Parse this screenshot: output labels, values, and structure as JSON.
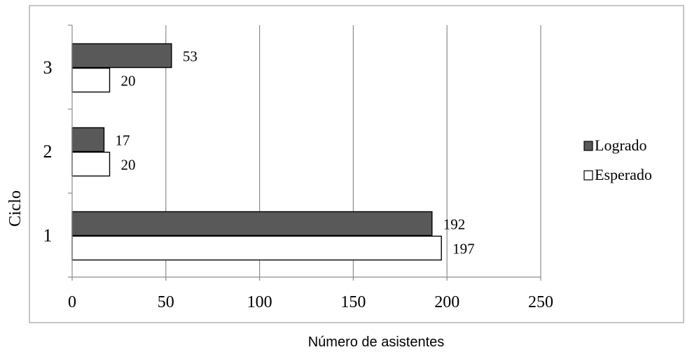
{
  "chart_data": {
    "type": "bar",
    "orientation": "horizontal",
    "categories": [
      "1",
      "2",
      "3"
    ],
    "series": [
      {
        "name": "Logrado",
        "values": [
          192,
          17,
          53
        ],
        "color": "#595959"
      },
      {
        "name": "Esperado",
        "values": [
          197,
          20,
          20
        ],
        "color": "#ffffff"
      }
    ],
    "xlabel": "Número de asistentes",
    "ylabel": "Ciclo",
    "xlim": [
      0,
      250
    ],
    "xticks": [
      0,
      50,
      100,
      150,
      200,
      250
    ],
    "grid": "vertical",
    "legend": "right"
  }
}
